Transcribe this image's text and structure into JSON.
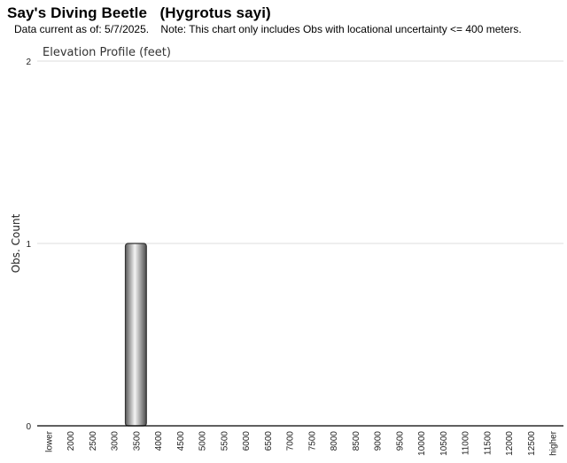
{
  "header": {
    "title": "Say's Diving Beetle   (Hygrotus sayi)",
    "subtitle": "Data current as of: 5/7/2025.    Note: This chart only includes Obs with locational uncertainty <= 400 meters."
  },
  "chart_data": {
    "type": "bar",
    "title": "Elevation Profile (feet)",
    "xlabel": "",
    "ylabel": "Obs. Count",
    "ylim": [
      0,
      2
    ],
    "yticks": [
      0,
      1,
      2
    ],
    "grid": true,
    "categories": [
      "lower",
      "2000",
      "2500",
      "3000",
      "3500",
      "4000",
      "4500",
      "5000",
      "5500",
      "6000",
      "6500",
      "7000",
      "7500",
      "8000",
      "8500",
      "9000",
      "9500",
      "10000",
      "10500",
      "11000",
      "11500",
      "12000",
      "12500",
      "higher"
    ],
    "values": [
      0,
      0,
      0,
      0,
      1,
      0,
      0,
      0,
      0,
      0,
      0,
      0,
      0,
      0,
      0,
      0,
      0,
      0,
      0,
      0,
      0,
      0,
      0,
      0
    ],
    "colors": {
      "bar_dark": "#555555",
      "bar_light": "#f2f2f2",
      "grid": "#dddddd",
      "axis": "#000000"
    }
  }
}
